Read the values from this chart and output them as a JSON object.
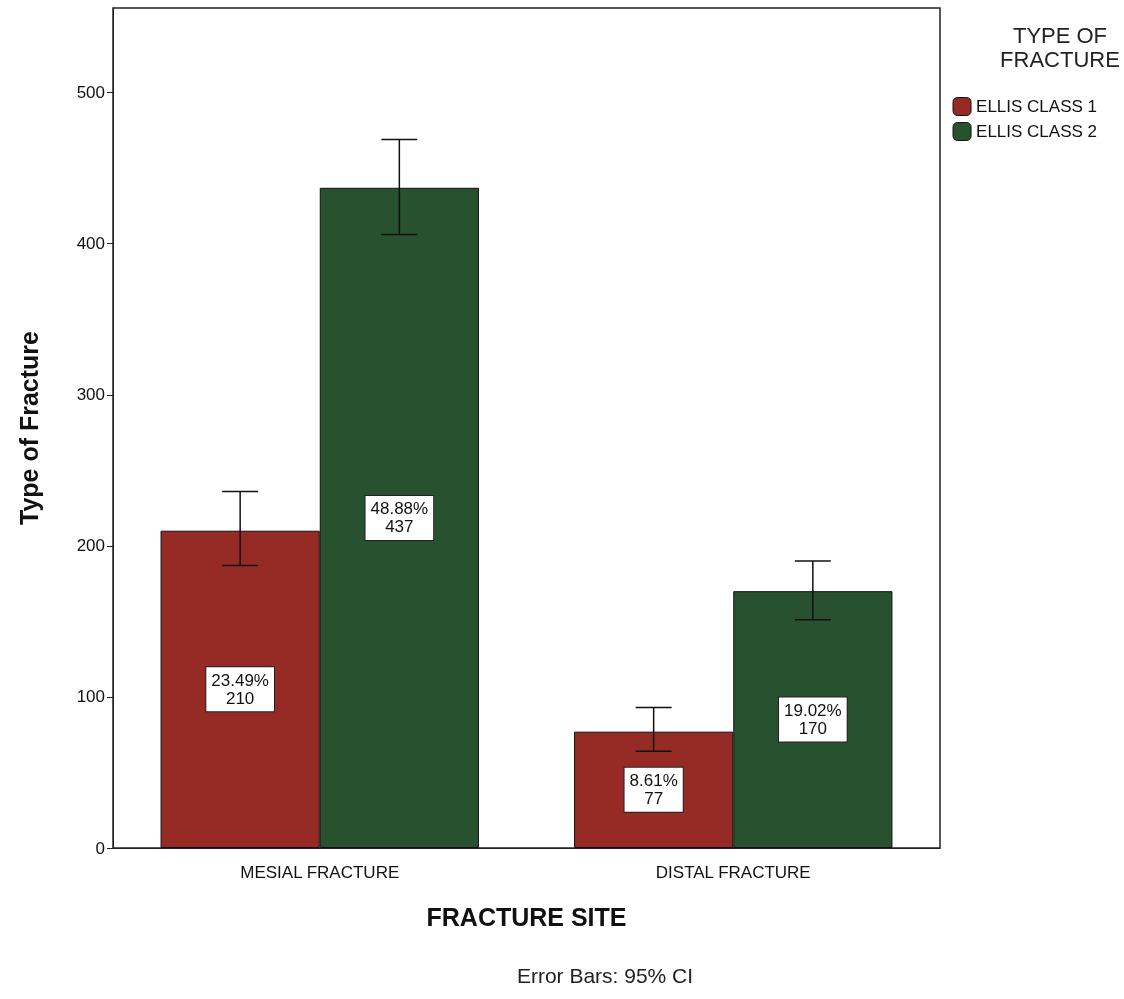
{
  "chart_data": {
    "type": "bar",
    "xlabel": "FRACTURE SITE",
    "ylabel": "Type of Fracture",
    "legend_title": "TYPE OF\nFRACTURE",
    "annotations": [
      "Error Bars: 95% CI"
    ],
    "categories": [
      "MESIAL FRACTURE",
      "DISTAL FRACTURE"
    ],
    "series": [
      {
        "name": "ELLIS CLASS 1",
        "color": "#962a24",
        "values": [
          210,
          77
        ],
        "errors": [
          [
            187,
            236
          ],
          [
            64,
            93
          ]
        ],
        "value_labels": [
          "23.49%\n210",
          "8.61%\n77"
        ]
      },
      {
        "name": "ELLIS CLASS 2",
        "color": "#28522f",
        "values": [
          437,
          170
        ],
        "errors": [
          [
            406,
            469
          ],
          [
            151,
            190
          ]
        ],
        "value_labels": [
          "48.88%\n437",
          "19.02%\n170"
        ]
      }
    ],
    "ylim": [
      0,
      556
    ],
    "yticks": [
      0,
      100,
      200,
      300,
      400,
      500
    ],
    "grid": false,
    "legend": "top right"
  }
}
